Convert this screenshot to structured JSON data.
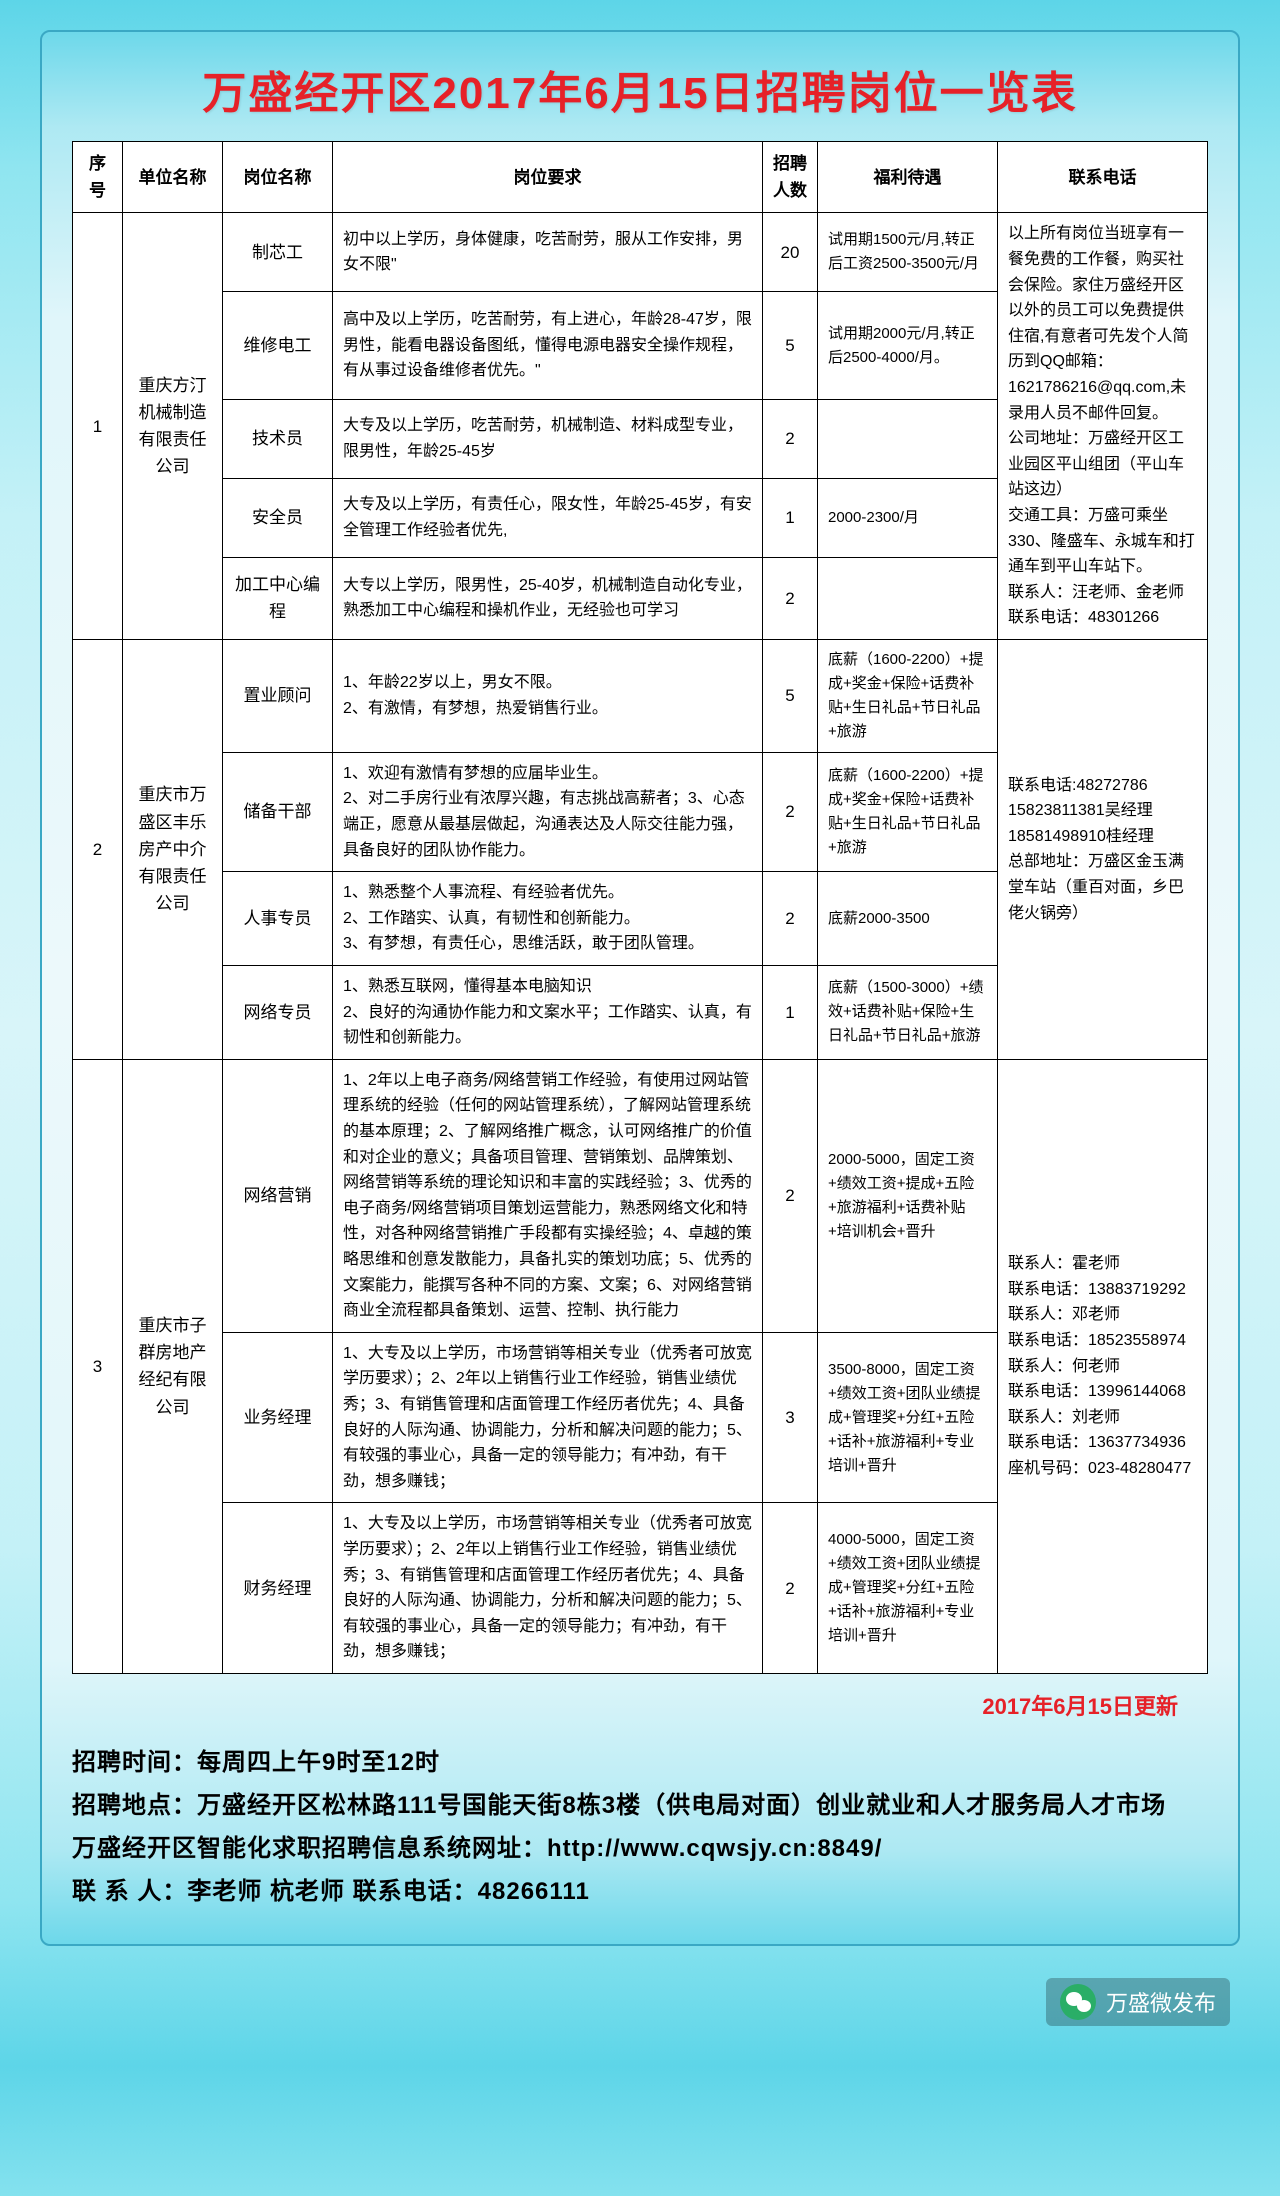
{
  "title": "万盛经开区2017年6月15日招聘岗位一览表",
  "headers": {
    "seq": "序号",
    "company": "单位名称",
    "position": "岗位名称",
    "requirement": "岗位要求",
    "count": "招聘人数",
    "salary": "福利待遇",
    "contact": "联系电话"
  },
  "groups": [
    {
      "seq": "1",
      "company": "重庆方汀机械制造有限责任公司",
      "contact": "以上所有岗位当班享有一餐免费的工作餐，购买社会保险。家住万盛经开区以外的员工可以免费提供住宿,有意者可先发个人简历到QQ邮箱：1621786216@qq.com,未录用人员不邮件回复。\n公司地址：万盛经开区工业园区平山组团（平山车站这边）\n交通工具：万盛可乘坐330、隆盛车、永城车和打通车到平山车站下。\n联系人：汪老师、金老师     联系电话：48301266",
      "rows": [
        {
          "position": "制芯工",
          "requirement": "初中以上学历，身体健康，吃苦耐劳，服从工作安排，男女不限\"",
          "count": "20",
          "salary": "试用期1500元/月,转正后工资2500-3500元/月"
        },
        {
          "position": "维修电工",
          "requirement": "高中及以上学历，吃苦耐劳，有上进心，年龄28-47岁，限男性，能看电器设备图纸，懂得电源电器安全操作规程，有从事过设备维修者优先。\"",
          "count": "5",
          "salary": "试用期2000元/月,转正后2500-4000/月。"
        },
        {
          "position": "技术员",
          "requirement": "大专及以上学历，吃苦耐劳，机械制造、材料成型专业，限男性，年龄25-45岁",
          "count": "2",
          "salary": ""
        },
        {
          "position": "安全员",
          "requirement": "大专及以上学历，有责任心，限女性，年龄25-45岁，有安全管理工作经验者优先,",
          "count": "1",
          "salary": "2000-2300/月"
        },
        {
          "position": "加工中心编程",
          "requirement": "大专以上学历，限男性，25-40岁，机械制造自动化专业，熟悉加工中心编程和操机作业，无经验也可学习",
          "count": "2",
          "salary": ""
        }
      ]
    },
    {
      "seq": "2",
      "company": "重庆市万盛区丰乐房产中介有限责任公司",
      "contact": "联系电话:48272786\n15823811381吴经理\n18581498910桂经理\n总部地址：万盛区金玉满堂车站（重百对面，乡巴佬火锅旁）",
      "rows": [
        {
          "position": "置业顾问",
          "requirement": "1、年龄22岁以上，男女不限。\n2、有激情，有梦想，热爱销售行业。",
          "count": "5",
          "salary": "底薪（1600-2200）+提成+奖金+保险+话费补贴+生日礼品+节日礼品+旅游"
        },
        {
          "position": "储备干部",
          "requirement": "1、欢迎有激情有梦想的应届毕业生。\n2、对二手房行业有浓厚兴趣，有志挑战高薪者；3、心态端正，愿意从最基层做起，沟通表达及人际交往能力强，具备良好的团队协作能力。",
          "count": "2",
          "salary": "底薪（1600-2200）+提成+奖金+保险+话费补贴+生日礼品+节日礼品+旅游"
        },
        {
          "position": "人事专员",
          "requirement": "1、熟悉整个人事流程、有经验者优先。\n2、工作踏实、认真，有韧性和创新能力。\n3、有梦想，有责任心，思维活跃，敢于团队管理。",
          "count": "2",
          "salary": "底薪2000-3500"
        },
        {
          "position": "网络专员",
          "requirement": "1、熟悉互联网，懂得基本电脑知识\n2、良好的沟通协作能力和文案水平；工作踏实、认真，有韧性和创新能力。",
          "count": "1",
          "salary": "底薪（1500-3000）+绩效+话费补贴+保险+生日礼品+节日礼品+旅游"
        }
      ]
    },
    {
      "seq": "3",
      "company": "重庆市子群房地产经纪有限公司",
      "contact": "联系人：霍老师\n联系电话：13883719292\n联系人：邓老师\n联系电话：18523558974\n联系人：何老师\n联系电话：13996144068\n联系人：刘老师\n联系电话：13637734936\n座机号码：023-48280477",
      "rows": [
        {
          "position": "网络营销",
          "requirement": "1、2年以上电子商务/网络营销工作经验，有使用过网站管理系统的经验（任何的网站管理系统），了解网站管理系统的基本原理；2、了解网络推广概念，认可网络推广的价值和对企业的意义；具备项目管理、营销策划、品牌策划、网络营销等系统的理论知识和丰富的实践经验；3、优秀的电子商务/网络营销项目策划运营能力，熟悉网络文化和特性，对各种网络营销推广手段都有实操经验；4、卓越的策略思维和创意发散能力，具备扎实的策划功底；5、优秀的文案能力，能撰写各种不同的方案、文案；6、对网络营销商业全流程都具备策划、运营、控制、执行能力",
          "count": "2",
          "salary": "2000-5000，固定工资+绩效工资+提成+五险+旅游福利+话费补贴+培训机会+晋升"
        },
        {
          "position": "业务经理",
          "requirement": "1、大专及以上学历，市场营销等相关专业（优秀者可放宽学历要求）；2、2年以上销售行业工作经验，销售业绩优秀；3、有销售管理和店面管理工作经历者优先；4、具备良好的人际沟通、协调能力，分析和解决问题的能力；5、有较强的事业心，具备一定的领导能力；有冲劲，有干劲，想多赚钱；",
          "count": "3",
          "salary": "3500-8000，固定工资+绩效工资+团队业绩提成+管理奖+分红+五险+话补+旅游福利+专业培训+晋升"
        },
        {
          "position": "财务经理",
          "requirement": "1、大专及以上学历，市场营销等相关专业（优秀者可放宽学历要求）；2、2年以上销售行业工作经验，销售业绩优秀；3、有销售管理和店面管理工作经历者优先；4、具备良好的人际沟通、协调能力，分析和解决问题的能力；5、有较强的事业心，具备一定的领导能力；有冲劲，有干劲，想多赚钱；",
          "count": "2",
          "salary": "4000-5000，固定工资+绩效工资+团队业绩提成+管理奖+分红+五险+话补+旅游福利+专业培训+晋升"
        }
      ]
    }
  ],
  "update": "2017年6月15日更新",
  "footer": {
    "l1": "招聘时间：每周四上午9时至12时",
    "l2": "招聘地点：万盛经开区松林路111号国能天街8栋3楼（供电局对面）创业就业和人才服务局人才市场",
    "l3": "万盛经开区智能化求职招聘信息系统网址：http://www.cqwsjy.cn:8849/",
    "l4": "联 系 人：李老师  杭老师    联系电话：48266111"
  },
  "wechat": "万盛微发布"
}
